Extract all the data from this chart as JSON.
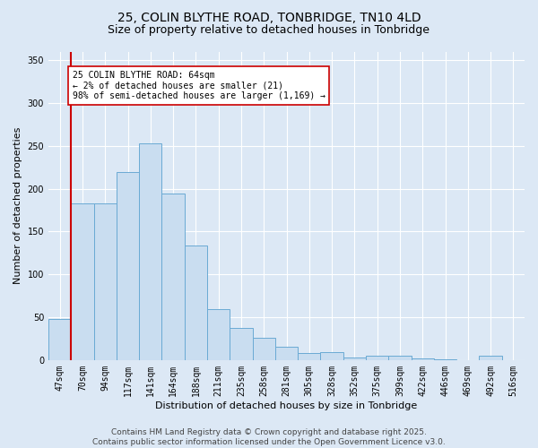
{
  "title_line1": "25, COLIN BLYTHE ROAD, TONBRIDGE, TN10 4LD",
  "title_line2": "Size of property relative to detached houses in Tonbridge",
  "xlabel": "Distribution of detached houses by size in Tonbridge",
  "ylabel": "Number of detached properties",
  "categories": [
    "47sqm",
    "70sqm",
    "94sqm",
    "117sqm",
    "141sqm",
    "164sqm",
    "188sqm",
    "211sqm",
    "235sqm",
    "258sqm",
    "281sqm",
    "305sqm",
    "328sqm",
    "352sqm",
    "375sqm",
    "399sqm",
    "422sqm",
    "446sqm",
    "469sqm",
    "492sqm",
    "516sqm"
  ],
  "values": [
    48,
    183,
    183,
    219,
    253,
    194,
    134,
    59,
    37,
    26,
    15,
    8,
    9,
    3,
    5,
    5,
    2,
    1,
    0,
    5,
    0
  ],
  "bar_color": "#c9ddf0",
  "bar_edge_color": "#6aaad4",
  "vline_x": 0.5,
  "annotation_box_text": "25 COLIN BLYTHE ROAD: 64sqm\n← 2% of detached houses are smaller (21)\n98% of semi-detached houses are larger (1,169) →",
  "annotation_box_color": "#ffffff",
  "annotation_box_edge_color": "#cc0000",
  "vline_color": "#cc0000",
  "ylim": [
    0,
    360
  ],
  "yticks": [
    0,
    50,
    100,
    150,
    200,
    250,
    300,
    350
  ],
  "bg_color": "#dce8f5",
  "plot_bg_color": "#dce8f5",
  "grid_color": "#ffffff",
  "title_fontsize": 10,
  "subtitle_fontsize": 9,
  "axis_label_fontsize": 8,
  "tick_fontsize": 7,
  "footer_fontsize": 6.5,
  "footer_text": "Contains HM Land Registry data © Crown copyright and database right 2025.\nContains public sector information licensed under the Open Government Licence v3.0."
}
